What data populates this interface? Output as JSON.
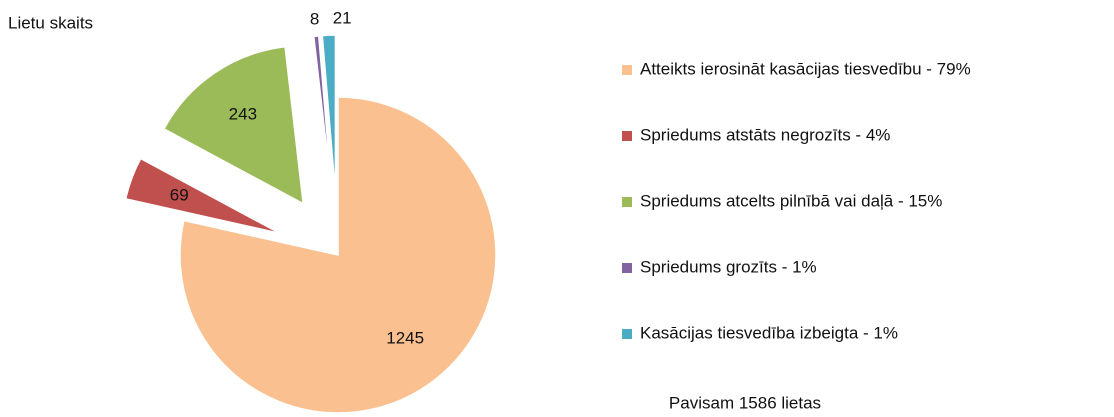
{
  "chart_data": {
    "type": "pie",
    "title": "Lietu skaits",
    "categories": [
      "Atteikts ierosināt kasācijas tiesvedību - 79%",
      "Spriedums atstāts negrozīts - 4%",
      "Spriedums atcelts pilnībā vai daļā - 15%",
      "Spriedums grozīts - 1%",
      "Kasācijas tiesvedība izbeigta - 1%"
    ],
    "values": [
      1245,
      69,
      243,
      8,
      21
    ],
    "colors": [
      "#fac090",
      "#c0504d",
      "#9bbb59",
      "#8064a2",
      "#4bacc6"
    ],
    "footer": "Pavisam 1586 lietas"
  }
}
